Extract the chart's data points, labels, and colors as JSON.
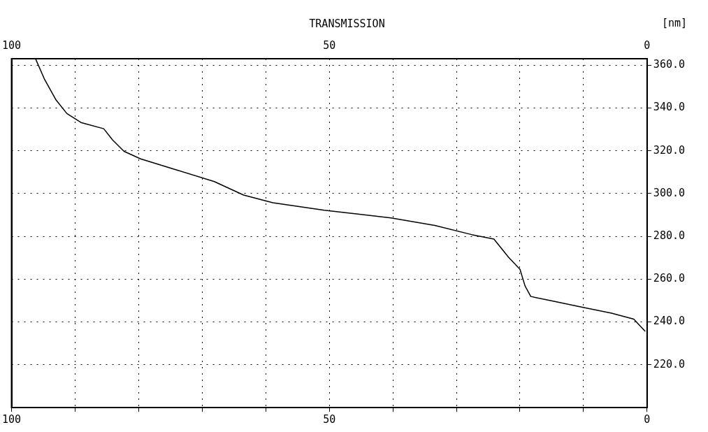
{
  "chart_data": {
    "type": "line",
    "title": "TRANSMISSION",
    "ylabel": "[nm]",
    "x": [
      96.2,
      94.8,
      93.0,
      91.3,
      89.0,
      85.5,
      84.1,
      82.3,
      79.7,
      73.9,
      68.1,
      63.5,
      58.9,
      50.8,
      40.3,
      33.4,
      27.6,
      24.1,
      21.8,
      20.0,
      19.2,
      18.3,
      14.8,
      10.2,
      5.6,
      2.1,
      0.3
    ],
    "series": [
      {
        "color": "#000000",
        "values": [
          362.8,
          353.3,
          343.7,
          337.4,
          333.1,
          330.3,
          325.0,
          319.7,
          316.2,
          310.9,
          305.6,
          299.3,
          295.7,
          292.2,
          288.6,
          285.1,
          280.8,
          278.7,
          270.2,
          264.6,
          256.8,
          251.9,
          249.7,
          246.9,
          244.1,
          241.3,
          235.6
        ]
      }
    ],
    "xlim": [
      100,
      0
    ],
    "xticks": [
      {
        "value": 100,
        "label": "100"
      },
      {
        "value": 90,
        "label": null
      },
      {
        "value": 80,
        "label": null
      },
      {
        "value": 70,
        "label": null
      },
      {
        "value": 60,
        "label": null
      },
      50,
      {
        "value": 40,
        "label": null
      },
      {
        "value": 30,
        "label": null
      },
      {
        "value": 20,
        "label": null
      },
      {
        "value": 10,
        "label": null
      },
      0
    ],
    "x2lim": [
      100,
      0
    ],
    "x2ticks": [
      {
        "value": 100,
        "label": "100"
      },
      50,
      0
    ],
    "ylim": [
      200,
      363
    ],
    "yticks": [
      {
        "value": 220,
        "label": "220.0"
      },
      {
        "value": 240,
        "label": "240.0"
      },
      {
        "value": 260,
        "label": "260.0"
      },
      {
        "value": 280,
        "label": "280.0"
      },
      {
        "value": 300,
        "label": "300.0"
      },
      {
        "value": 320,
        "label": "320.0"
      },
      {
        "value": 340,
        "label": "340.0"
      },
      {
        "value": 360,
        "label": "360.0"
      }
    ],
    "grid": true,
    "marker": "none",
    "line_style": "solid"
  }
}
